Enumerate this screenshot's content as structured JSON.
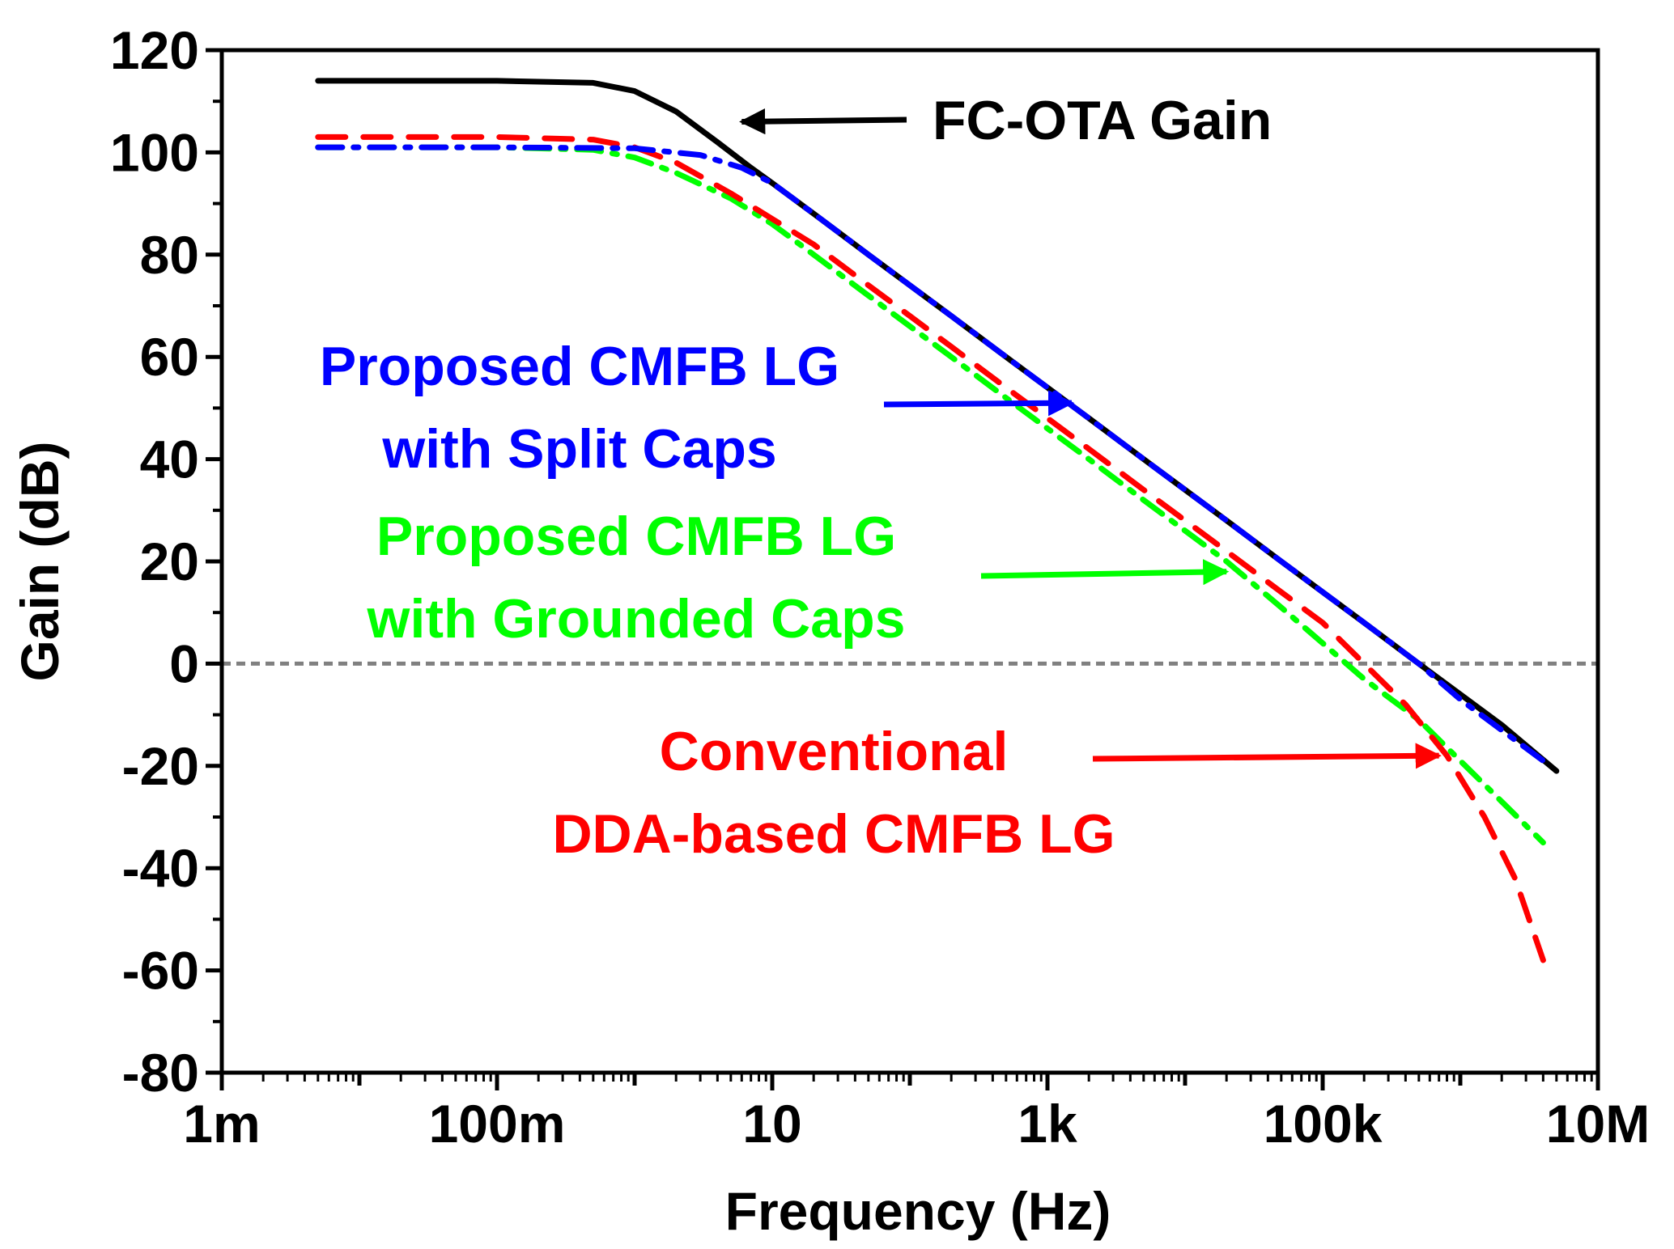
{
  "chart_data": {
    "type": "line",
    "title": "",
    "xlabel": "Frequency (Hz)",
    "ylabel": "Gain (dB)",
    "x_scale": "log",
    "xlim": [
      0.001,
      10000000
    ],
    "ylim": [
      -80,
      120
    ],
    "grid": false,
    "x_ticks": [
      {
        "value": 0.001,
        "label": "1m"
      },
      {
        "value": 0.1,
        "label": "100m"
      },
      {
        "value": 10,
        "label": "10"
      },
      {
        "value": 1000,
        "label": "1k"
      },
      {
        "value": 100000,
        "label": "100k"
      },
      {
        "value": 10000000,
        "label": "10M"
      }
    ],
    "y_ticks": [
      {
        "value": 120,
        "label": "120"
      },
      {
        "value": 100,
        "label": "100"
      },
      {
        "value": 80,
        "label": "80"
      },
      {
        "value": 60,
        "label": "60"
      },
      {
        "value": 40,
        "label": "40"
      },
      {
        "value": 20,
        "label": "20"
      },
      {
        "value": 0,
        "label": "0"
      },
      {
        "value": -20,
        "label": "-20"
      },
      {
        "value": -40,
        "label": "-40"
      },
      {
        "value": -60,
        "label": "-60"
      },
      {
        "value": -80,
        "label": "-80"
      }
    ],
    "reference_line": {
      "y": 0,
      "color": "#808080",
      "style": "dotted"
    },
    "series": [
      {
        "name": "FC-OTA Gain",
        "color": "#000000",
        "style": "solid",
        "points": [
          [
            0.005,
            114
          ],
          [
            0.1,
            114
          ],
          [
            0.5,
            113.6
          ],
          [
            1,
            112
          ],
          [
            2,
            108
          ],
          [
            4,
            102
          ],
          [
            7,
            97
          ],
          [
            10,
            94
          ],
          [
            20,
            88
          ],
          [
            50,
            80
          ],
          [
            100,
            74
          ],
          [
            200,
            68
          ],
          [
            500,
            60
          ],
          [
            1000,
            54
          ],
          [
            2000,
            48
          ],
          [
            5000,
            40
          ],
          [
            10000,
            34
          ],
          [
            20000,
            28
          ],
          [
            50000,
            20
          ],
          [
            100000,
            14
          ],
          [
            200000,
            8
          ],
          [
            500000,
            0
          ],
          [
            1000000,
            -6
          ],
          [
            2000000,
            -12
          ],
          [
            5000000,
            -21
          ]
        ]
      },
      {
        "name": "Proposed CMFB LG with Split Caps",
        "color": "#0000ff",
        "style": "dashdot",
        "points": [
          [
            0.005,
            101
          ],
          [
            0.1,
            101
          ],
          [
            1,
            100.8
          ],
          [
            3,
            99.5
          ],
          [
            6,
            97
          ],
          [
            10,
            94
          ],
          [
            20,
            88
          ],
          [
            50,
            80
          ],
          [
            100,
            74
          ],
          [
            200,
            68
          ],
          [
            500,
            60
          ],
          [
            1000,
            54
          ],
          [
            2000,
            48
          ],
          [
            5000,
            40
          ],
          [
            10000,
            34
          ],
          [
            20000,
            28
          ],
          [
            50000,
            20
          ],
          [
            100000,
            14
          ],
          [
            200000,
            8
          ],
          [
            500000,
            0
          ],
          [
            1000000,
            -7
          ],
          [
            2000000,
            -13
          ],
          [
            4000000,
            -19
          ]
        ]
      },
      {
        "name": "Proposed CMFB LG with Grounded Caps",
        "color": "#00ff00",
        "style": "dashdot",
        "points": [
          [
            0.005,
            101
          ],
          [
            0.1,
            101
          ],
          [
            0.5,
            100.5
          ],
          [
            1,
            99
          ],
          [
            2,
            96
          ],
          [
            5,
            91
          ],
          [
            10,
            86
          ],
          [
            20,
            80
          ],
          [
            50,
            72
          ],
          [
            100,
            66
          ],
          [
            200,
            60
          ],
          [
            500,
            52
          ],
          [
            1000,
            46
          ],
          [
            2000,
            40
          ],
          [
            5000,
            32
          ],
          [
            10000,
            26
          ],
          [
            20000,
            20
          ],
          [
            50000,
            11
          ],
          [
            100000,
            4
          ],
          [
            200000,
            -3
          ],
          [
            500000,
            -11
          ],
          [
            1000000,
            -19
          ],
          [
            2000000,
            -27
          ],
          [
            4000000,
            -35
          ]
        ]
      },
      {
        "name": "Conventional DDA-based CMFB LG",
        "color": "#ff0000",
        "style": "dashed",
        "points": [
          [
            0.005,
            103
          ],
          [
            0.1,
            103
          ],
          [
            0.5,
            102.5
          ],
          [
            1,
            101
          ],
          [
            2,
            98
          ],
          [
            5,
            92
          ],
          [
            10,
            87
          ],
          [
            20,
            82
          ],
          [
            50,
            74
          ],
          [
            100,
            68
          ],
          [
            200,
            62
          ],
          [
            500,
            54
          ],
          [
            1000,
            48
          ],
          [
            2000,
            42
          ],
          [
            5000,
            34
          ],
          [
            10000,
            28
          ],
          [
            20000,
            22
          ],
          [
            50000,
            14
          ],
          [
            100000,
            8
          ],
          [
            200000,
            0
          ],
          [
            400000,
            -8
          ],
          [
            800000,
            -18
          ],
          [
            1500000,
            -30
          ],
          [
            2500000,
            -42
          ],
          [
            4000000,
            -58
          ]
        ]
      }
    ],
    "annotations": [
      {
        "text": "FC-OTA Gain",
        "color": "#000000",
        "arrow_to": [
          6,
          106
        ]
      },
      {
        "text": "Proposed CMFB LG",
        "color": "#0000ff",
        "arrow_to": [
          1500,
          51
        ]
      },
      {
        "text": "with Split Caps",
        "color": "#0000ff"
      },
      {
        "text": "Proposed CMFB LG",
        "color": "#00ff00",
        "arrow_to": [
          20000,
          18
        ]
      },
      {
        "text": "with Grounded Caps",
        "color": "#00ff00"
      },
      {
        "text": "Conventional",
        "color": "#ff0000",
        "arrow_to": [
          700000,
          -18
        ]
      },
      {
        "text": "DDA-based CMFB LG",
        "color": "#ff0000"
      }
    ]
  }
}
